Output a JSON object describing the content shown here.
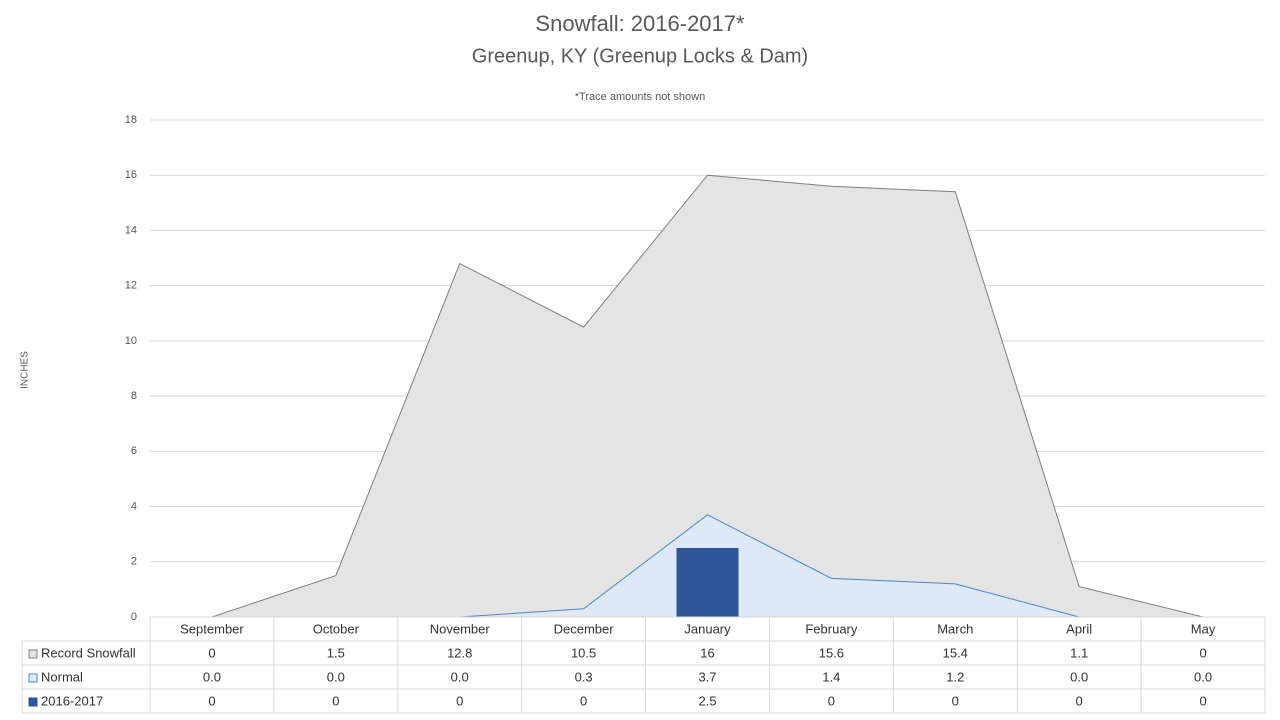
{
  "chart_data": {
    "type": "combo",
    "title": "Snowfall: 2016-2017*",
    "subtitle": "Greenup, KY (Greenup Locks & Dam)",
    "note": "*Trace amounts not shown",
    "y_label": "INCHES",
    "categories": [
      "September",
      "October",
      "November",
      "December",
      "January",
      "February",
      "March",
      "April",
      "May"
    ],
    "series": [
      {
        "name": "Record Snowfall",
        "type": "area",
        "color": "#e4e4e4",
        "line_color": "#7f7f7f",
        "values": [
          0,
          1.5,
          12.8,
          10.5,
          16,
          15.6,
          15.4,
          1.1,
          0
        ]
      },
      {
        "name": "Normal",
        "type": "area",
        "color": "#dde9f6",
        "line_color": "#4a86c8",
        "values": [
          0,
          0,
          0,
          0.3,
          3.7,
          1.4,
          1.2,
          0,
          0
        ],
        "value_labels": [
          "0.0",
          "0.0",
          "0.0",
          "0.3",
          "3.7",
          "1.4",
          "1.2",
          "0.0",
          "0.0"
        ]
      },
      {
        "name": "2016-2017",
        "type": "bar",
        "color": "#2f5597",
        "values": [
          0,
          0,
          0,
          0,
          2.5,
          0,
          0,
          0,
          0
        ]
      }
    ],
    "ylim": [
      0,
      18
    ],
    "yticks": [
      0,
      2,
      4,
      6,
      8,
      10,
      12,
      14,
      16,
      18
    ],
    "grid": true,
    "data_table": true
  }
}
